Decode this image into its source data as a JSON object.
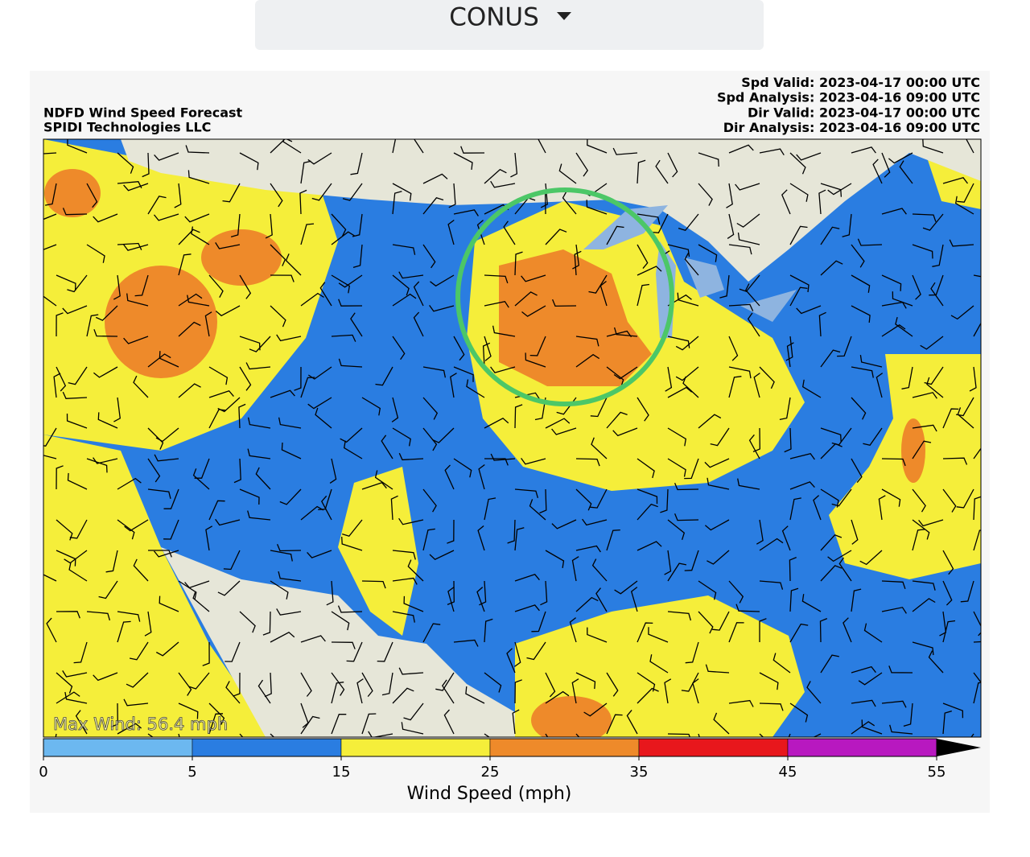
{
  "dropdown": {
    "label": "CONUS"
  },
  "map": {
    "title": "NDFD Wind Speed Forecast",
    "subtitle": "SPIDI Technologies LLC",
    "times": [
      {
        "label": "Spd Valid:",
        "value": "2023-04-17 00:00 UTC"
      },
      {
        "label": "Spd Analysis:",
        "value": "2023-04-16 09:00 UTC"
      },
      {
        "label": "Dir Valid:",
        "value": "2023-04-17 00:00 UTC"
      },
      {
        "label": "Dir Analysis:",
        "value": "2023-04-16 09:00 UTC"
      }
    ],
    "annotation": "Max Wind: 56.4 mph"
  },
  "colorbar": {
    "label": "Wind Speed (mph)",
    "bins": [
      0,
      5,
      15,
      25,
      35,
      45,
      55
    ],
    "colors": [
      "#6cb8f0",
      "#2a7de1",
      "#f5ee3a",
      "#ee8a2a",
      "#e8171c",
      "#b818c0"
    ],
    "extend_color": "#000000"
  }
}
